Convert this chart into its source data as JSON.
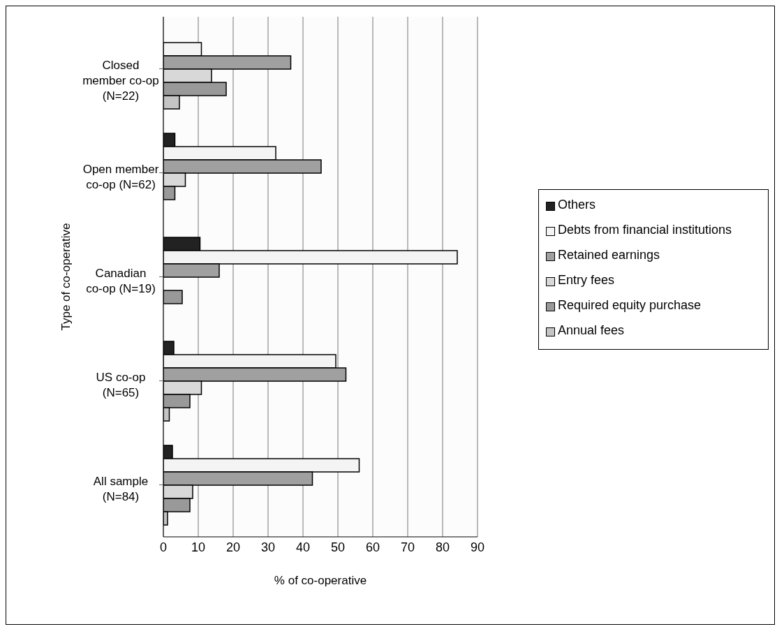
{
  "chart_data": {
    "type": "bar",
    "orientation": "horizontal",
    "xlabel": "% of co-operative",
    "ylabel": "Type of co-operative",
    "categories": [
      "Closed member co-op (N=22)",
      "Open member co-op (N=62)",
      "Canadian co-op (N=19)",
      "US co-op (N=65)",
      "All sample (N=84)"
    ],
    "series": [
      {
        "name": "Others",
        "color": "#222222",
        "values": [
          0,
          3.3,
          10.5,
          3.0,
          2.6
        ]
      },
      {
        "name": "Debts from financial institutions",
        "color": "#f4f4f4",
        "values": [
          10.9,
          32.2,
          84.2,
          49.4,
          56.1
        ]
      },
      {
        "name": "Retained earnings",
        "color": "#a0a0a0",
        "values": [
          36.5,
          45.2,
          16.0,
          52.3,
          42.7
        ]
      },
      {
        "name": "Entry fees",
        "color": "#d8d8d8",
        "values": [
          13.8,
          6.3,
          0,
          10.9,
          8.4
        ]
      },
      {
        "name": "Required equity purchase",
        "color": "#999999",
        "values": [
          18.0,
          3.3,
          5.4,
          7.6,
          7.6
        ]
      },
      {
        "name": "Annual fees",
        "color": "#c4c4c4",
        "values": [
          4.6,
          0,
          0,
          1.7,
          1.2
        ]
      }
    ],
    "xlim": [
      0,
      90
    ],
    "xticks": [
      0,
      10,
      20,
      30,
      40,
      50,
      60,
      70,
      80,
      90
    ],
    "grid": "x",
    "legend": "right"
  }
}
